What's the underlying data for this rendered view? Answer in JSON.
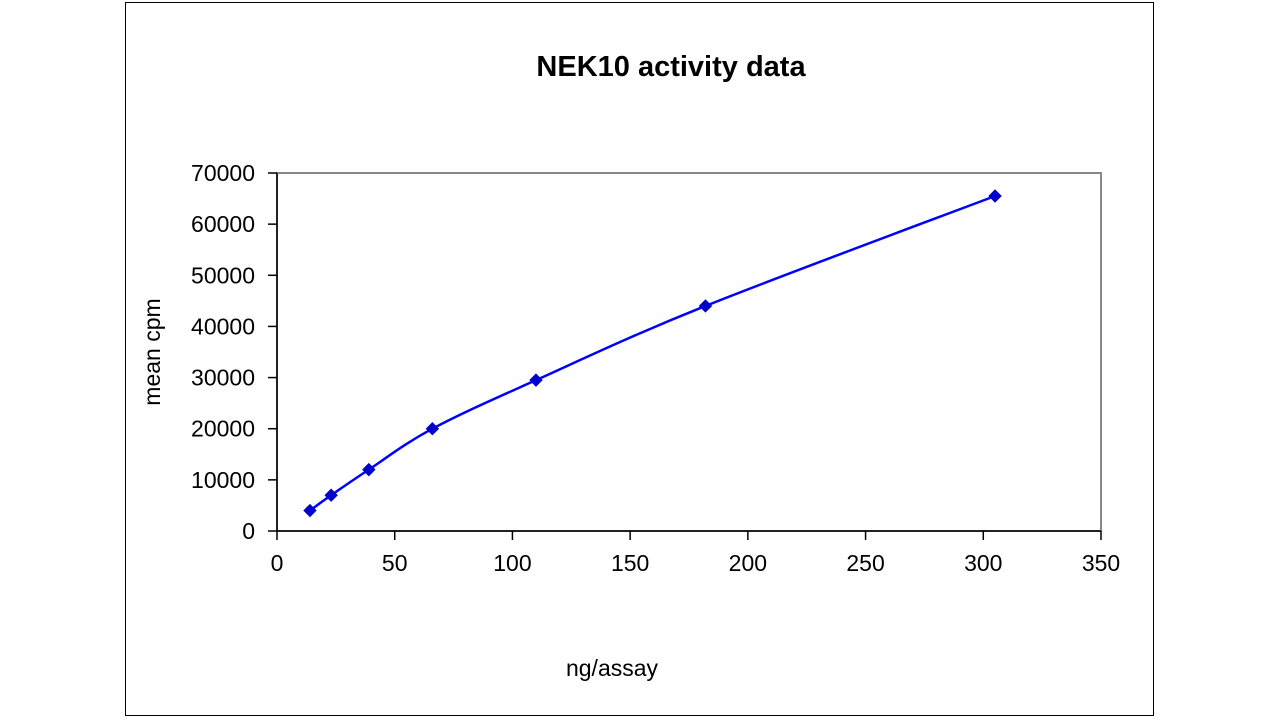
{
  "chart_data": {
    "type": "line",
    "title": "NEK10 activity data",
    "xlabel": "ng/assay",
    "ylabel": "mean cpm",
    "xlim": [
      0,
      350
    ],
    "ylim": [
      0,
      70000
    ],
    "x_ticks": [
      0,
      50,
      100,
      150,
      200,
      250,
      300,
      350
    ],
    "y_ticks": [
      0,
      10000,
      20000,
      30000,
      40000,
      50000,
      60000,
      70000
    ],
    "grid": false,
    "legend": "none",
    "marker": "diamond",
    "smooth": true,
    "series": [
      {
        "name": "NEK10",
        "color": "#0000ff",
        "marker_color": "#0000cc",
        "x": [
          14,
          23,
          39,
          66,
          110,
          182,
          305
        ],
        "y": [
          4000,
          7000,
          12000,
          20000,
          29500,
          44000,
          65500
        ]
      }
    ]
  }
}
